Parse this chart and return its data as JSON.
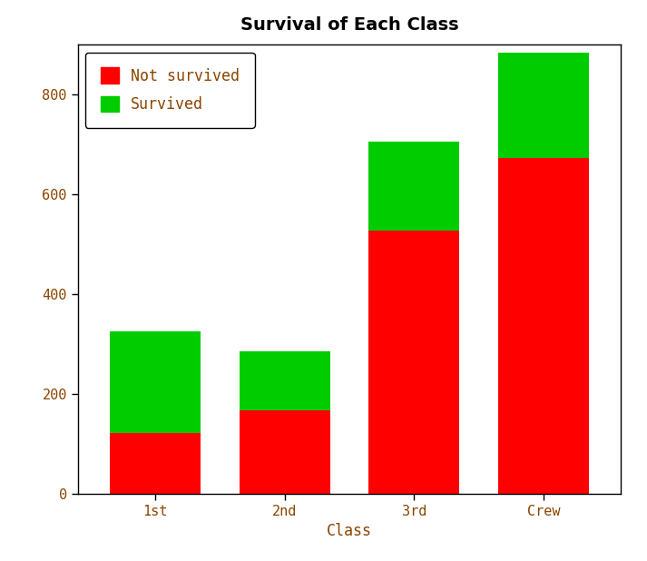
{
  "categories": [
    "1st",
    "2nd",
    "3rd",
    "Crew"
  ],
  "not_survived": [
    122,
    167,
    528,
    673
  ],
  "survived": [
    203,
    118,
    178,
    212
  ],
  "not_survived_color": "#FF0000",
  "survived_color": "#00CC00",
  "title": "Survival of Each Class",
  "xlabel": "Class",
  "ylabel": "",
  "ylim": [
    0,
    900
  ],
  "yticks": [
    0,
    200,
    400,
    600,
    800
  ],
  "background_color": "#FFFFFF",
  "title_fontsize": 14,
  "label_fontsize": 12,
  "tick_fontsize": 11,
  "axis_text_color": "#8B4500",
  "legend_labels": [
    "Not survived",
    "Survived"
  ],
  "bar_width": 0.7,
  "bar_gap": 0.3
}
